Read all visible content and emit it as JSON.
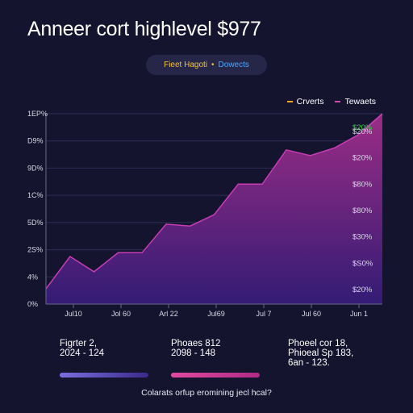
{
  "header": {
    "title": "Anneer cort highlevel $977",
    "pill_left": "Fieet Hagoti",
    "pill_sep": "•",
    "pill_right": "Dowects"
  },
  "colors": {
    "background": "#14142e",
    "area_top": "#9a2a86",
    "area_bottom": "#3a1c7a",
    "line": "#c03ab0",
    "accent_green": "#35d049",
    "legend_orange": "#f5a623",
    "legend_pink": "#e040b0"
  },
  "chart_data": {
    "type": "area",
    "legend": [
      "Crverts",
      "Tewaets"
    ],
    "x_ticks": [
      "Jul10",
      "Jol 60",
      "Arl 22",
      "Jul69",
      "Jul 7",
      "Jul 60",
      "Jun 1"
    ],
    "y_ticks_left": [
      "0%",
      "4%",
      "2S%",
      "5D%",
      "1C%",
      "9D%",
      "D9%",
      "1EP%"
    ],
    "y_ticks_right": [
      "$20%",
      "$S0%",
      "$30%",
      "$80%",
      "$80%",
      "$20%",
      "$20%"
    ],
    "highlight_label": "$20%",
    "ylim": [
      0,
      100
    ],
    "grid": true,
    "x": [
      0,
      1,
      2,
      3,
      4,
      5,
      6,
      7,
      8,
      9,
      10,
      11,
      12,
      13,
      14
    ],
    "values": [
      8,
      25,
      17,
      27,
      27,
      42,
      41,
      47,
      63,
      63,
      81,
      78,
      82,
      89,
      100
    ]
  },
  "bottom": {
    "col1": [
      "Figrter 2,",
      "2024 - 124"
    ],
    "col2": [
      "Phoaes 812",
      "2098 - 148"
    ],
    "col3": [
      "Phoeel cor 18,",
      "Phioeal Sp 183,",
      "6an - 123."
    ],
    "footer": "Colarats orfup eromining jecl hcal?"
  }
}
